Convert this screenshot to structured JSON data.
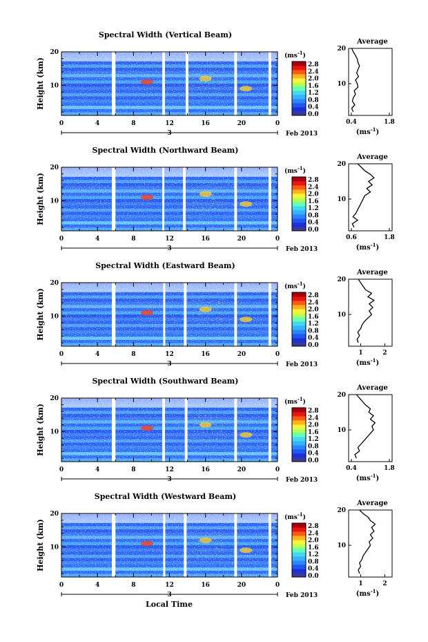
{
  "x_axis_title": "Local Time",
  "colorbar": {
    "unit_label": "(ms",
    "unit_exp": "-1",
    "ticks": [
      "0.0",
      "0.4",
      "0.8",
      "1.2",
      "1.6",
      "2.0",
      "2.4",
      "2.8"
    ]
  },
  "x_ticks": [
    "0",
    "4",
    "8",
    "12",
    "16",
    "20",
    "0"
  ],
  "day_label": "3",
  "date_label": "Feb 2013",
  "y_label": "Height (km)",
  "y_ticks": [
    "10",
    "20"
  ],
  "average_title": "Average",
  "average_xlabel": "(ms",
  "average_xlabel_exp": "-1",
  "chart_data": [
    {
      "type": "heatmap",
      "title": "Spectral Width (Vertical Beam)",
      "xlabel": "Local Time",
      "ylabel": "Height (km)",
      "xlim": [
        0,
        24
      ],
      "ylim": [
        1,
        20
      ],
      "zlim": [
        0.0,
        2.8
      ],
      "data_gaps_hours": [
        [
          5.6,
          6.0
        ],
        [
          11.2,
          11.5
        ],
        [
          13.8,
          14.1
        ],
        [
          19.2,
          19.5
        ],
        [
          23.0,
          23.3
        ]
      ],
      "average_profile": {
        "xlim": [
          0.4,
          1.8
        ],
        "x_ticks": [
          "0.4",
          "1.8"
        ],
        "height_km": [
          2,
          3,
          4,
          5,
          6,
          7,
          8,
          9,
          10,
          11,
          12,
          13,
          14,
          15,
          16,
          17,
          18,
          19,
          20
        ],
        "width_ms": [
          0.55,
          0.5,
          0.6,
          0.52,
          0.55,
          0.62,
          0.58,
          0.7,
          0.68,
          0.62,
          0.72,
          0.66,
          0.7,
          0.75,
          0.7,
          0.68,
          0.62,
          0.55,
          0.5
        ]
      }
    },
    {
      "type": "heatmap",
      "title": "Spectral Width (Northward Beam)",
      "xlabel": "Local Time",
      "ylabel": "Height (km)",
      "xlim": [
        0,
        24
      ],
      "ylim": [
        1,
        20
      ],
      "zlim": [
        0.0,
        2.8
      ],
      "data_gaps_hours": [
        [
          5.6,
          6.0
        ],
        [
          11.2,
          11.4
        ],
        [
          13.5,
          13.8
        ],
        [
          19.2,
          19.5
        ],
        [
          23.0,
          23.3
        ]
      ],
      "average_profile": {
        "xlim": [
          0.6,
          1.8
        ],
        "x_ticks": [
          "0.6",
          "1.8"
        ],
        "height_km": [
          2,
          3,
          4,
          5,
          6,
          7,
          8,
          9,
          10,
          11,
          12,
          13,
          14,
          15,
          16,
          17,
          18,
          19,
          20
        ],
        "width_ms": [
          0.75,
          0.7,
          0.85,
          0.72,
          0.8,
          0.85,
          0.9,
          0.95,
          1.0,
          1.05,
          1.2,
          1.1,
          1.25,
          1.15,
          1.3,
          1.2,
          1.05,
          0.95,
          0.85
        ]
      }
    },
    {
      "type": "heatmap",
      "title": "Spectral Width (Eastward Beam)",
      "xlabel": "Local Time",
      "ylabel": "Height (km)",
      "xlim": [
        0,
        24
      ],
      "ylim": [
        1,
        20
      ],
      "zlim": [
        0.0,
        2.8
      ],
      "data_gaps_hours": [
        [
          5.6,
          6.0
        ],
        [
          11.3,
          11.5
        ],
        [
          13.6,
          13.9
        ],
        [
          19.2,
          19.5
        ],
        [
          23.0,
          23.3
        ]
      ],
      "average_profile": {
        "xlim": [
          0.5,
          2.3
        ],
        "x_ticks": [
          "1",
          "2"
        ],
        "height_km": [
          2,
          3,
          4,
          5,
          6,
          7,
          8,
          9,
          10,
          11,
          12,
          13,
          14,
          15,
          16,
          17,
          18,
          19,
          20
        ],
        "width_ms": [
          0.9,
          0.85,
          0.95,
          0.88,
          1.0,
          1.05,
          1.15,
          1.3,
          1.45,
          1.35,
          1.5,
          1.35,
          1.55,
          1.3,
          1.45,
          1.2,
          1.1,
          1.0,
          0.9
        ]
      }
    },
    {
      "type": "heatmap",
      "title": "Spectral Width (Southward Beam)",
      "xlabel": "Local Time",
      "ylabel": "Height (km)",
      "xlim": [
        0,
        24
      ],
      "ylim": [
        1,
        20
      ],
      "zlim": [
        0.0,
        2.8
      ],
      "data_gaps_hours": [
        [
          5.6,
          6.0
        ],
        [
          11.2,
          11.5
        ],
        [
          13.7,
          14.0
        ],
        [
          19.2,
          19.5
        ],
        [
          23.0,
          23.3
        ]
      ],
      "average_profile": {
        "xlim": [
          0.4,
          1.8
        ],
        "x_ticks": [
          "0.4",
          "1.8"
        ],
        "height_km": [
          2,
          3,
          4,
          5,
          6,
          7,
          8,
          9,
          10,
          11,
          12,
          13,
          14,
          15,
          16,
          17,
          18,
          19,
          20
        ],
        "width_ms": [
          0.65,
          0.6,
          0.75,
          0.7,
          0.8,
          0.9,
          1.0,
          1.1,
          1.2,
          1.15,
          1.25,
          1.1,
          1.2,
          1.05,
          1.1,
          0.95,
          0.85,
          0.75,
          0.65
        ]
      }
    },
    {
      "type": "heatmap",
      "title": "Spectral Width (Westward Beam)",
      "xlabel": "Local Time",
      "ylabel": "Height (km)",
      "xlim": [
        0,
        24
      ],
      "ylim": [
        1,
        20
      ],
      "zlim": [
        0.0,
        2.8
      ],
      "data_gaps_hours": [
        [
          5.6,
          6.0
        ],
        [
          11.3,
          11.5
        ],
        [
          13.6,
          13.9
        ],
        [
          19.2,
          19.5
        ],
        [
          23.0,
          23.3
        ]
      ],
      "average_profile": {
        "xlim": [
          0.5,
          2.3
        ],
        "x_ticks": [
          "1",
          "2"
        ],
        "height_km": [
          2,
          3,
          4,
          5,
          6,
          7,
          8,
          9,
          10,
          11,
          12,
          13,
          14,
          15,
          16,
          17,
          18,
          19,
          20
        ],
        "width_ms": [
          0.95,
          0.9,
          1.0,
          0.95,
          1.05,
          1.1,
          1.2,
          1.3,
          1.4,
          1.35,
          1.5,
          1.4,
          1.55,
          1.45,
          1.6,
          1.4,
          1.3,
          1.1,
          0.95
        ]
      }
    }
  ]
}
